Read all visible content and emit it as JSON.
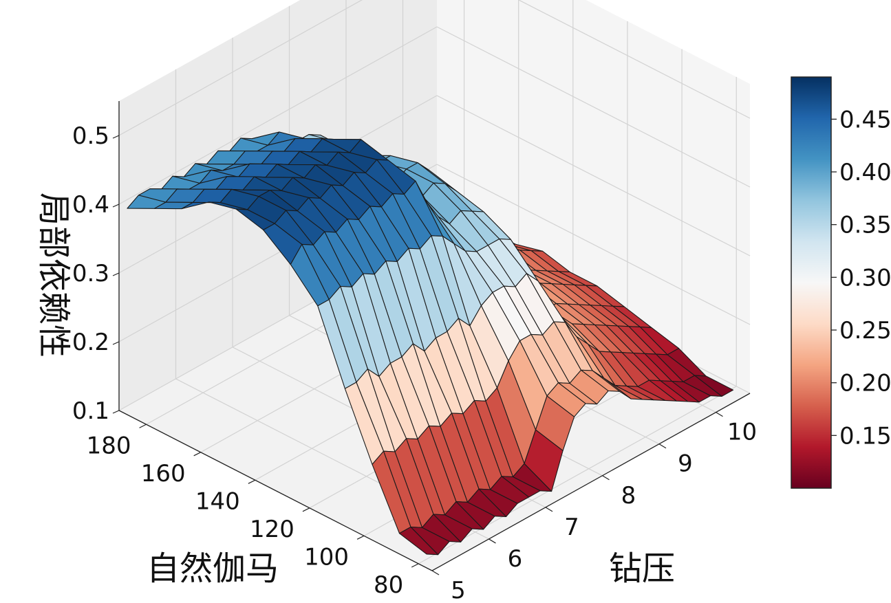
{
  "chart_data": {
    "type": "surface",
    "title": "",
    "xlabel": "钻压",
    "ylabel": "自然伽马",
    "zlabel": "局部依赖性",
    "xlim": [
      5,
      10.6
    ],
    "ylim": [
      75,
      190
    ],
    "zlim": [
      0.1,
      0.55
    ],
    "x_ticks": [
      "5",
      "6",
      "7",
      "8",
      "9",
      "10"
    ],
    "y_ticks": [
      "80",
      "100",
      "120",
      "140",
      "160",
      "180"
    ],
    "z_ticks": [
      "0.1",
      "0.2",
      "0.3",
      "0.4",
      "0.5"
    ],
    "grid": true,
    "x_grid": [
      5.0,
      5.2,
      5.4,
      5.6,
      5.8,
      6.0,
      6.2,
      6.4,
      6.6,
      6.8,
      7.0,
      7.2,
      7.4,
      7.6,
      7.8,
      8.0,
      8.2,
      8.4,
      8.6,
      8.8,
      9.0,
      9.2,
      9.4,
      9.6,
      9.8,
      10.0,
      10.2,
      10.4
    ],
    "y_grid": [
      77,
      87,
      97,
      107,
      117,
      127,
      137,
      147,
      157,
      167,
      177,
      187
    ],
    "z_values": [
      [
        0.12,
        0.13,
        0.21,
        0.3,
        0.4,
        0.44,
        0.47,
        0.48,
        0.47,
        0.44,
        0.42,
        0.4
      ],
      [
        0.11,
        0.13,
        0.22,
        0.3,
        0.4,
        0.46,
        0.47,
        0.47,
        0.46,
        0.44,
        0.42,
        0.41
      ],
      [
        0.12,
        0.12,
        0.21,
        0.31,
        0.41,
        0.45,
        0.48,
        0.48,
        0.47,
        0.45,
        0.43,
        0.41
      ],
      [
        0.11,
        0.13,
        0.22,
        0.29,
        0.4,
        0.46,
        0.47,
        0.48,
        0.46,
        0.44,
        0.42,
        0.4
      ],
      [
        0.12,
        0.12,
        0.21,
        0.3,
        0.41,
        0.45,
        0.48,
        0.47,
        0.47,
        0.45,
        0.42,
        0.41
      ],
      [
        0.11,
        0.13,
        0.22,
        0.3,
        0.4,
        0.46,
        0.47,
        0.48,
        0.46,
        0.44,
        0.43,
        0.4
      ],
      [
        0.12,
        0.12,
        0.21,
        0.31,
        0.41,
        0.45,
        0.48,
        0.47,
        0.47,
        0.45,
        0.42,
        0.41
      ],
      [
        0.11,
        0.13,
        0.22,
        0.29,
        0.4,
        0.46,
        0.47,
        0.48,
        0.46,
        0.44,
        0.42,
        0.4
      ],
      [
        0.12,
        0.12,
        0.21,
        0.3,
        0.41,
        0.45,
        0.48,
        0.47,
        0.47,
        0.45,
        0.43,
        0.41
      ],
      [
        0.12,
        0.13,
        0.22,
        0.3,
        0.4,
        0.46,
        0.47,
        0.48,
        0.46,
        0.44,
        0.42,
        0.4
      ],
      [
        0.12,
        0.12,
        0.21,
        0.31,
        0.41,
        0.45,
        0.48,
        0.47,
        0.47,
        0.45,
        0.42,
        0.41
      ],
      [
        0.11,
        0.13,
        0.22,
        0.29,
        0.4,
        0.46,
        0.47,
        0.48,
        0.46,
        0.44,
        0.43,
        0.4
      ],
      [
        0.16,
        0.17,
        0.25,
        0.31,
        0.38,
        0.42,
        0.44,
        0.44,
        0.43,
        0.41,
        0.4,
        0.39
      ],
      [
        0.2,
        0.21,
        0.27,
        0.32,
        0.36,
        0.39,
        0.41,
        0.41,
        0.4,
        0.39,
        0.38,
        0.37
      ],
      [
        0.21,
        0.22,
        0.27,
        0.32,
        0.35,
        0.37,
        0.39,
        0.39,
        0.38,
        0.37,
        0.37,
        0.36
      ],
      [
        0.2,
        0.21,
        0.26,
        0.31,
        0.35,
        0.38,
        0.4,
        0.4,
        0.39,
        0.38,
        0.37,
        0.36
      ],
      [
        0.21,
        0.22,
        0.27,
        0.32,
        0.35,
        0.37,
        0.39,
        0.4,
        0.39,
        0.37,
        0.37,
        0.36
      ],
      [
        0.2,
        0.21,
        0.26,
        0.3,
        0.34,
        0.36,
        0.37,
        0.38,
        0.37,
        0.36,
        0.35,
        0.35
      ],
      [
        0.18,
        0.19,
        0.23,
        0.26,
        0.29,
        0.31,
        0.32,
        0.33,
        0.32,
        0.31,
        0.3,
        0.3
      ],
      [
        0.17,
        0.17,
        0.21,
        0.23,
        0.24,
        0.25,
        0.26,
        0.26,
        0.26,
        0.25,
        0.24,
        0.24
      ],
      [
        0.16,
        0.16,
        0.19,
        0.21,
        0.21,
        0.22,
        0.23,
        0.23,
        0.23,
        0.22,
        0.22,
        0.21
      ],
      [
        0.15,
        0.15,
        0.18,
        0.2,
        0.21,
        0.22,
        0.22,
        0.23,
        0.22,
        0.22,
        0.21,
        0.21
      ],
      [
        0.14,
        0.15,
        0.17,
        0.19,
        0.2,
        0.21,
        0.21,
        0.22,
        0.21,
        0.21,
        0.2,
        0.2
      ],
      [
        0.13,
        0.14,
        0.16,
        0.18,
        0.19,
        0.2,
        0.2,
        0.21,
        0.2,
        0.2,
        0.19,
        0.19
      ],
      [
        0.12,
        0.13,
        0.15,
        0.17,
        0.18,
        0.19,
        0.19,
        0.2,
        0.19,
        0.19,
        0.18,
        0.18
      ],
      [
        0.12,
        0.12,
        0.14,
        0.16,
        0.17,
        0.18,
        0.18,
        0.19,
        0.18,
        0.18,
        0.17,
        0.17
      ],
      [
        0.11,
        0.12,
        0.13,
        0.15,
        0.16,
        0.17,
        0.17,
        0.18,
        0.17,
        0.17,
        0.16,
        0.16
      ],
      [
        0.11,
        0.11,
        0.13,
        0.14,
        0.15,
        0.16,
        0.16,
        0.17,
        0.16,
        0.16,
        0.15,
        0.15
      ]
    ],
    "colormap": "RdBu",
    "colormap_stops": [
      "#67001f",
      "#b2182b",
      "#d6604d",
      "#f4a582",
      "#fddbc7",
      "#f7f7f7",
      "#d1e5f0",
      "#92c5de",
      "#4393c3",
      "#2166ac",
      "#053061"
    ],
    "colorbar": {
      "min": 0.1,
      "max": 0.49,
      "ticks": [
        "0.15",
        "0.20",
        "0.25",
        "0.30",
        "0.35",
        "0.40",
        "0.45"
      ],
      "placement": "right"
    }
  }
}
